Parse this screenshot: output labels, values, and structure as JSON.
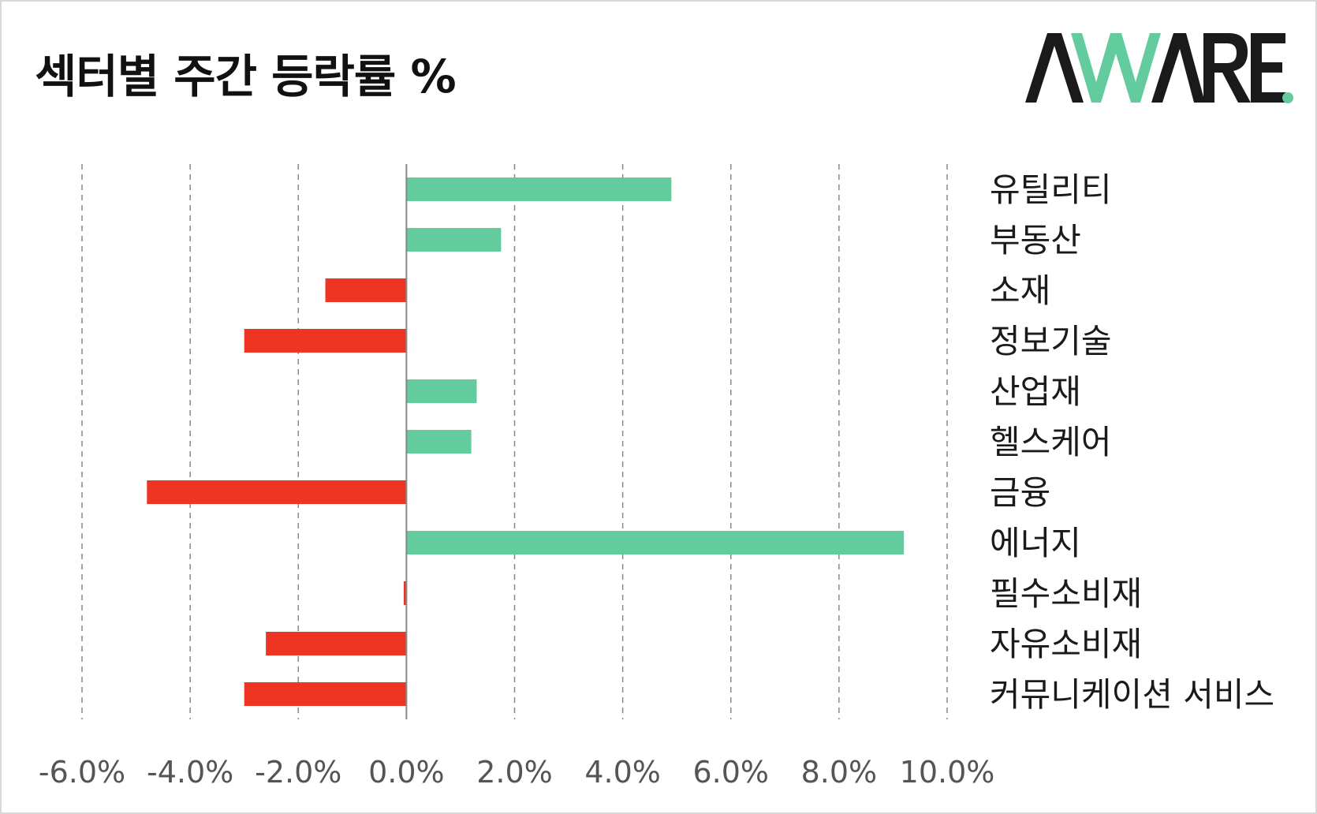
{
  "title": "섹터별 주간 등락률 %",
  "logo": {
    "text": "AWARE",
    "dot_color": "#62CC9E",
    "dark_color": "#1a1a1a"
  },
  "colors": {
    "positive": "#62CC9E",
    "negative": "#EE3524",
    "gridline": "#888888",
    "axis": "#888888"
  },
  "chart_data": {
    "type": "bar",
    "orientation": "horizontal",
    "title": "섹터별 주간 등락률 %",
    "categories": [
      "유틸리티",
      "부동산",
      "소재",
      "정보기술",
      "산업재",
      "헬스케어",
      "금융",
      "에너지",
      "필수소비재",
      "자유소비재",
      "커뮤니케이션 서비스"
    ],
    "values": [
      4.9,
      1.75,
      -1.5,
      -3.0,
      1.3,
      1.2,
      -4.8,
      9.2,
      -0.05,
      -2.6,
      -3.0
    ],
    "xlim": [
      -6.0,
      10.0
    ],
    "xticks": [
      "-6.0%",
      "-4.0%",
      "-2.0%",
      "0.0%",
      "2.0%",
      "4.0%",
      "6.0%",
      "8.0%",
      "10.0%"
    ],
    "xtick_values": [
      -6,
      -4,
      -2,
      0,
      2,
      4,
      6,
      8,
      10
    ],
    "xlabel": "",
    "ylabel": "",
    "grid": "vertical dashed",
    "category_labels_position": "right"
  }
}
